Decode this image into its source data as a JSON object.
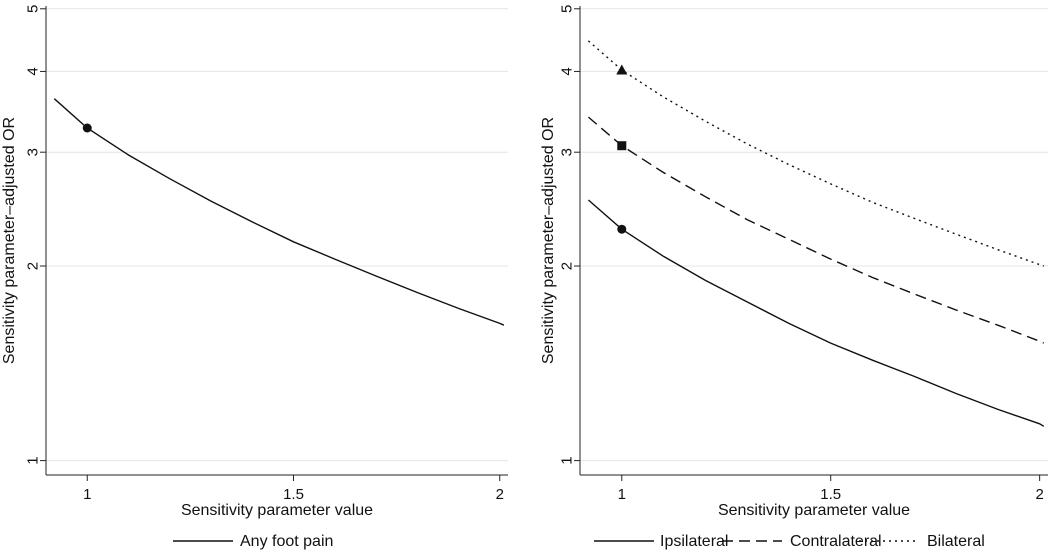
{
  "chart_data": [
    {
      "type": "line",
      "title": "",
      "xlabel": "Sensitivity parameter value",
      "ylabel": "Sensitivity parameter–adjusted OR",
      "xlim": [
        0.9,
        2.02
      ],
      "ylim": [
        0.95,
        5.05
      ],
      "yscale": "log",
      "xticks": [
        1,
        1.5,
        2
      ],
      "xtick_labels": [
        "1",
        "1.5",
        "2"
      ],
      "yticks": [
        1,
        2,
        3,
        4,
        5
      ],
      "ytick_labels": [
        "1",
        "2",
        "3",
        "4",
        "5"
      ],
      "grid": "horizontal",
      "legend": "bottom",
      "series": [
        {
          "name": "Any foot pain",
          "style": "solid",
          "x": [
            0.92,
            1.0,
            1.1,
            1.2,
            1.3,
            1.4,
            1.5,
            1.6,
            1.7,
            1.8,
            1.9,
            2.0,
            2.01
          ],
          "values": [
            3.63,
            3.27,
            2.97,
            2.73,
            2.52,
            2.34,
            2.18,
            2.05,
            1.93,
            1.82,
            1.72,
            1.63,
            1.62
          ],
          "marker": {
            "x": 1,
            "y": 3.27,
            "shape": "circle"
          }
        }
      ]
    },
    {
      "type": "line",
      "title": "",
      "xlabel": "Sensitivity parameter value",
      "ylabel": "Sensitivity parameter–adjusted OR",
      "xlim": [
        0.9,
        2.02
      ],
      "ylim": [
        0.95,
        5.05
      ],
      "yscale": "log",
      "xticks": [
        1,
        1.5,
        2
      ],
      "xtick_labels": [
        "1",
        "1.5",
        "2"
      ],
      "yticks": [
        1,
        2,
        3,
        4,
        5
      ],
      "ytick_labels": [
        "1",
        "2",
        "3",
        "4",
        "5"
      ],
      "grid": "horizontal",
      "legend": "bottom",
      "series": [
        {
          "name": "Ipsilateral",
          "style": "solid",
          "x": [
            0.92,
            1.0,
            1.1,
            1.2,
            1.3,
            1.4,
            1.5,
            1.6,
            1.7,
            1.8,
            1.9,
            2.0,
            2.01
          ],
          "values": [
            2.53,
            2.28,
            2.07,
            1.9,
            1.76,
            1.63,
            1.52,
            1.43,
            1.35,
            1.27,
            1.2,
            1.14,
            1.13
          ],
          "marker": {
            "x": 1,
            "y": 2.28,
            "shape": "circle"
          }
        },
        {
          "name": "Contralateral",
          "style": "dashed",
          "x": [
            0.92,
            1.0,
            1.1,
            1.2,
            1.3,
            1.4,
            1.5,
            1.6,
            1.7,
            1.8,
            1.9,
            2.0,
            2.01
          ],
          "values": [
            3.4,
            3.07,
            2.79,
            2.56,
            2.36,
            2.2,
            2.05,
            1.92,
            1.81,
            1.71,
            1.62,
            1.53,
            1.52
          ],
          "marker": {
            "x": 1,
            "y": 3.07,
            "shape": "square"
          }
        },
        {
          "name": "Bilateral",
          "style": "dotted",
          "x": [
            0.92,
            1.0,
            1.1,
            1.2,
            1.3,
            1.4,
            1.5,
            1.6,
            1.7,
            1.8,
            1.9,
            2.0,
            2.01
          ],
          "values": [
            4.46,
            4.02,
            3.65,
            3.35,
            3.09,
            2.87,
            2.68,
            2.51,
            2.37,
            2.24,
            2.12,
            2.01,
            2.0
          ],
          "marker": {
            "x": 1,
            "y": 4.02,
            "shape": "triangle"
          }
        }
      ]
    }
  ]
}
